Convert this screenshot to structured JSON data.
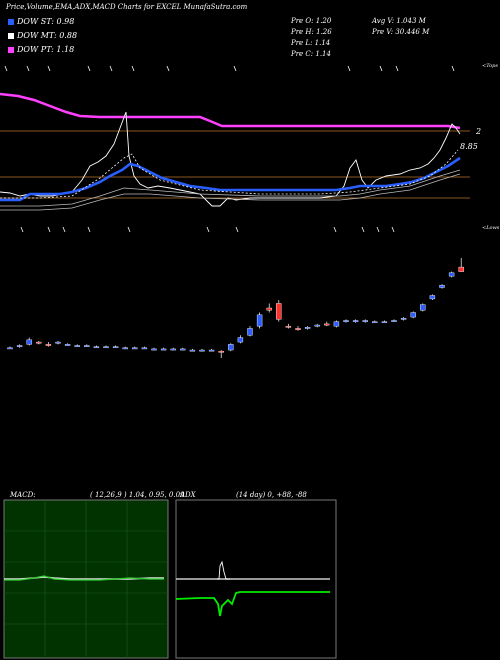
{
  "header": {
    "title": "Price,Volume,EMA,ADX,MACD Charts for EXCEL MunafaSutra.com"
  },
  "legend": [
    {
      "label": "DOW ST: 0.98",
      "color": "#2a5fff"
    },
    {
      "label": "DOW MT: 0.88",
      "color": "#ffffff"
    },
    {
      "label": "DOW PT: 1.18",
      "color": "#ff40ff"
    }
  ],
  "stats": {
    "open": "Pre   O: 1.20",
    "high": "Pre   H: 1.26",
    "low": "Pre   L: 1.14",
    "close": "Pre   C: 1.14",
    "avg_vol": "Avg V: 1.043 M",
    "pre_vol": "Pre   V: 30.446   M"
  },
  "ema_panel": {
    "top_label": "<Tops",
    "low_label": "<Lows",
    "right_value_1": "2",
    "right_value_2": "8.85",
    "colors": {
      "pink": "#ff40ff",
      "blue": "#2a5fff",
      "white": "#ffffff",
      "orange": "#b8742e"
    }
  },
  "macd": {
    "title": "MACD:",
    "params": "( 12,26,9 ) 1.04, 0.95, 0.09"
  },
  "adx": {
    "title": "ADX",
    "params": "(14  day) 0, +88, -88"
  },
  "chart_data": {
    "type": "candlestick",
    "ohlc": [
      [
        0.47,
        0.48,
        0.46,
        0.47
      ],
      [
        0.48,
        0.5,
        0.47,
        0.49
      ],
      [
        0.5,
        0.56,
        0.49,
        0.54
      ],
      [
        0.52,
        0.53,
        0.5,
        0.51
      ],
      [
        0.5,
        0.52,
        0.48,
        0.49
      ],
      [
        0.51,
        0.53,
        0.5,
        0.52
      ],
      [
        0.5,
        0.51,
        0.49,
        0.5
      ],
      [
        0.49,
        0.5,
        0.48,
        0.49
      ],
      [
        0.49,
        0.5,
        0.48,
        0.49
      ],
      [
        0.48,
        0.49,
        0.47,
        0.48
      ],
      [
        0.48,
        0.49,
        0.47,
        0.48
      ],
      [
        0.48,
        0.49,
        0.47,
        0.48
      ],
      [
        0.47,
        0.48,
        0.46,
        0.47
      ],
      [
        0.47,
        0.48,
        0.46,
        0.47
      ],
      [
        0.47,
        0.48,
        0.46,
        0.47
      ],
      [
        0.46,
        0.47,
        0.45,
        0.46
      ],
      [
        0.46,
        0.47,
        0.45,
        0.46
      ],
      [
        0.46,
        0.47,
        0.45,
        0.46
      ],
      [
        0.46,
        0.47,
        0.45,
        0.46
      ],
      [
        0.45,
        0.46,
        0.44,
        0.45
      ],
      [
        0.45,
        0.46,
        0.44,
        0.45
      ],
      [
        0.45,
        0.46,
        0.44,
        0.45
      ],
      [
        0.44,
        0.45,
        0.38,
        0.43
      ],
      [
        0.45,
        0.51,
        0.44,
        0.5
      ],
      [
        0.52,
        0.58,
        0.51,
        0.56
      ],
      [
        0.58,
        0.66,
        0.57,
        0.64
      ],
      [
        0.66,
        0.78,
        0.64,
        0.76
      ],
      [
        0.82,
        0.86,
        0.78,
        0.8
      ],
      [
        0.86,
        0.89,
        0.7,
        0.72
      ],
      [
        0.66,
        0.68,
        0.64,
        0.65
      ],
      [
        0.64,
        0.66,
        0.62,
        0.63
      ],
      [
        0.64,
        0.66,
        0.63,
        0.65
      ],
      [
        0.66,
        0.68,
        0.65,
        0.67
      ],
      [
        0.68,
        0.7,
        0.66,
        0.67
      ],
      [
        0.66,
        0.71,
        0.65,
        0.7
      ],
      [
        0.7,
        0.72,
        0.69,
        0.71
      ],
      [
        0.7,
        0.72,
        0.69,
        0.71
      ],
      [
        0.7,
        0.72,
        0.69,
        0.71
      ],
      [
        0.7,
        0.71,
        0.69,
        0.7
      ],
      [
        0.7,
        0.71,
        0.69,
        0.7
      ],
      [
        0.71,
        0.72,
        0.7,
        0.71
      ],
      [
        0.72,
        0.74,
        0.71,
        0.73
      ],
      [
        0.74,
        0.79,
        0.73,
        0.78
      ],
      [
        0.8,
        0.86,
        0.79,
        0.85
      ],
      [
        0.9,
        0.94,
        0.89,
        0.93
      ],
      [
        1.0,
        1.03,
        0.99,
        1.02
      ],
      [
        1.1,
        1.14,
        1.09,
        1.13
      ],
      [
        1.18,
        1.26,
        1.14,
        1.14
      ]
    ],
    "candle_colors": {
      "up": "#2f5fff",
      "down": "#ff3030"
    }
  }
}
